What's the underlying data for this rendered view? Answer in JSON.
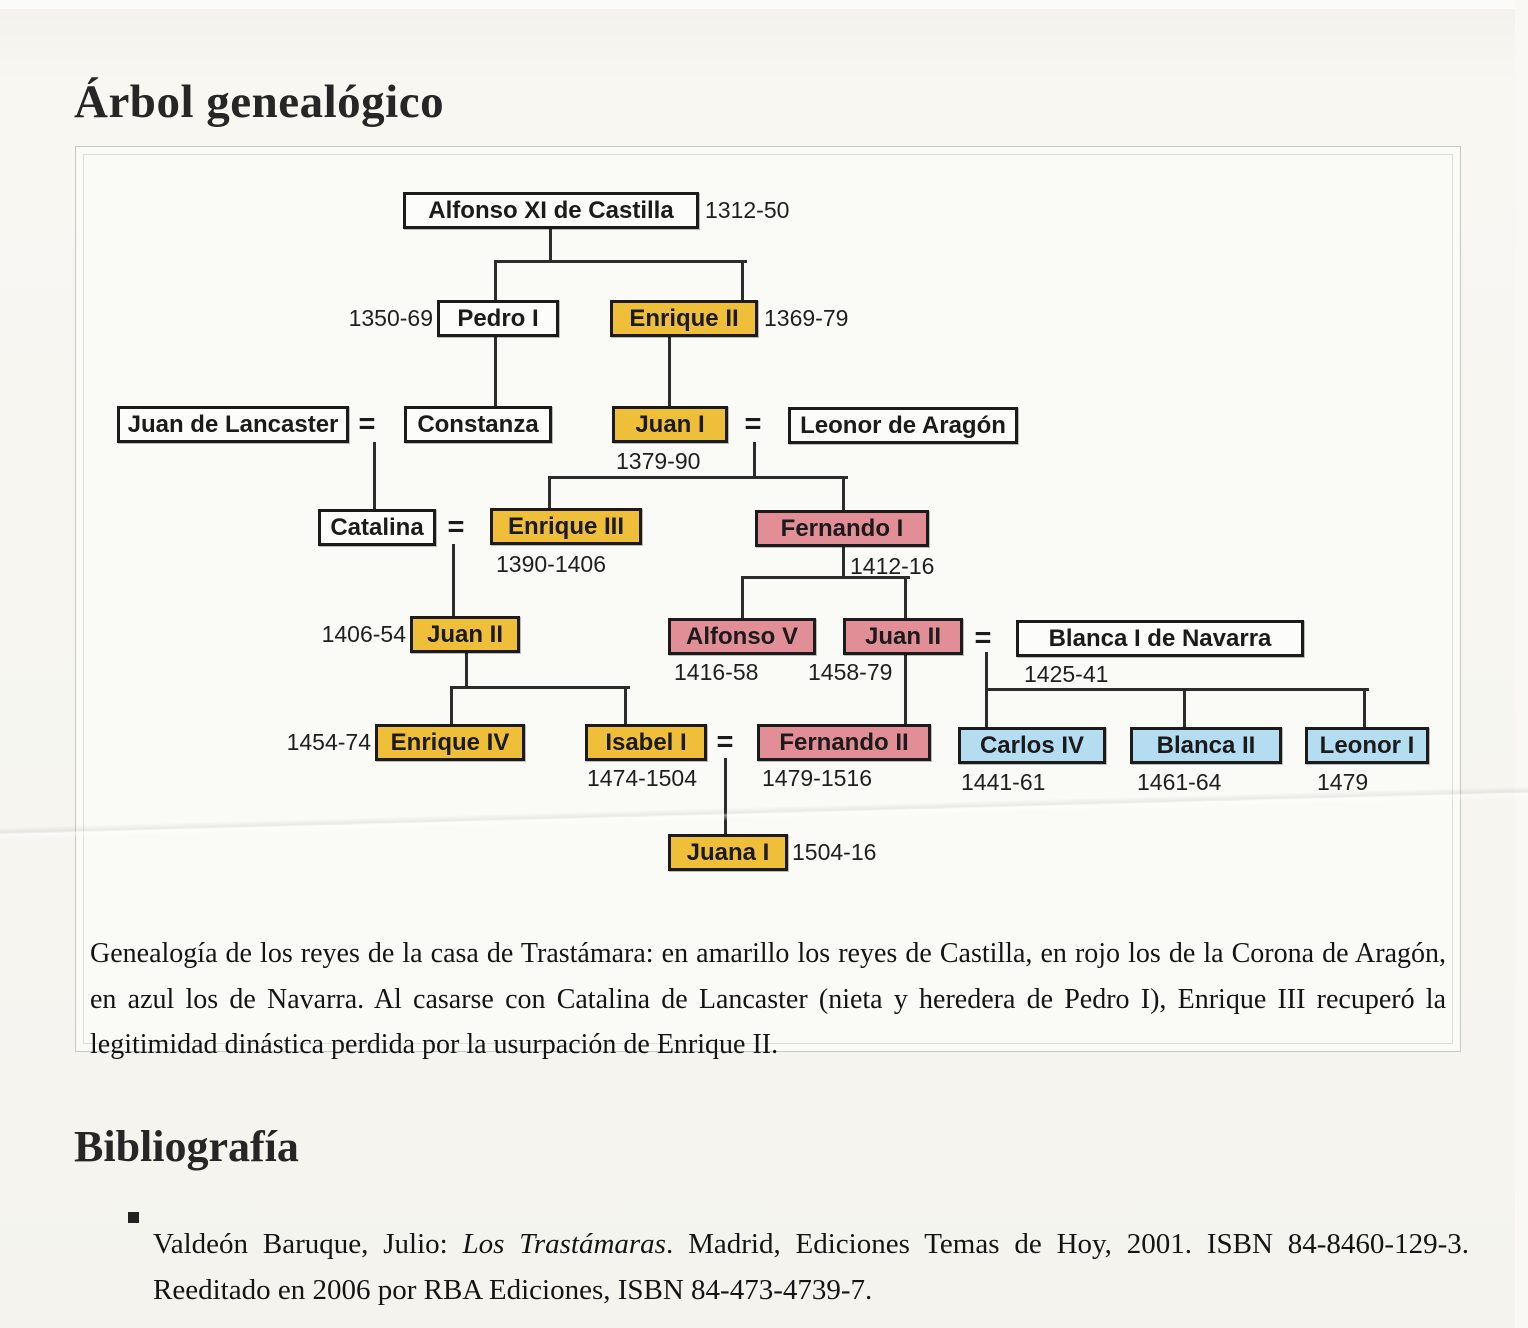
{
  "page": {
    "title": "Árbol genealógico",
    "bibliography_heading": "Bibliografía"
  },
  "figure": {
    "caption": "Genealogía de los reyes de la casa de Trastámara: en amarillo los reyes de Castilla, en rojo los de la Corona de Aragón, en azul los de Navarra. Al casarse con Catalina de Lancaster (nieta y heredera de Pedro I), Enrique III recuperó la legitimidad dinástica perdida por la usurpación de Enrique II."
  },
  "houses": {
    "castilla": "#EFBF3A",
    "aragon": "#E18E96",
    "navarra": "#B5DDF1",
    "none": "#FCFCFA"
  },
  "tree": {
    "equals_symbol": "=",
    "persons": [
      {
        "id": "alfonso_xi",
        "name": "Alfonso XI de Castilla",
        "dates": "1312-50",
        "house": "none"
      },
      {
        "id": "pedro_i",
        "name": "Pedro I",
        "dates": "1350-69",
        "house": "none"
      },
      {
        "id": "enrique_ii",
        "name": "Enrique II",
        "dates": "1369-79",
        "house": "castilla"
      },
      {
        "id": "juan_lancaster",
        "name": "Juan de Lancaster",
        "dates": "",
        "house": "none"
      },
      {
        "id": "constanza",
        "name": "Constanza",
        "dates": "",
        "house": "none"
      },
      {
        "id": "juan_i",
        "name": "Juan I",
        "dates": "1379-90",
        "house": "castilla"
      },
      {
        "id": "leonor_aragon",
        "name": "Leonor de Aragón",
        "dates": "",
        "house": "none"
      },
      {
        "id": "catalina",
        "name": "Catalina",
        "dates": "",
        "house": "none"
      },
      {
        "id": "enrique_iii",
        "name": "Enrique III",
        "dates": "1390-1406",
        "house": "castilla"
      },
      {
        "id": "fernando_i",
        "name": "Fernando I",
        "dates": "1412-16",
        "house": "aragon"
      },
      {
        "id": "juan_ii_castilla",
        "name": "Juan II",
        "dates": "1406-54",
        "house": "castilla"
      },
      {
        "id": "alfonso_v",
        "name": "Alfonso V",
        "dates": "1416-58",
        "house": "aragon"
      },
      {
        "id": "juan_ii_aragon",
        "name": "Juan II",
        "dates": "1458-79",
        "house": "aragon"
      },
      {
        "id": "blanca_i_navarra",
        "name": "Blanca I de Navarra",
        "dates": "1425-41",
        "house": "none"
      },
      {
        "id": "enrique_iv",
        "name": "Enrique IV",
        "dates": "1454-74",
        "house": "castilla"
      },
      {
        "id": "isabel_i",
        "name": "Isabel I",
        "dates": "1474-1504",
        "house": "castilla"
      },
      {
        "id": "fernando_ii",
        "name": "Fernando II",
        "dates": "1479-1516",
        "house": "aragon"
      },
      {
        "id": "carlos_iv",
        "name": "Carlos IV",
        "dates": "1441-61",
        "house": "navarra"
      },
      {
        "id": "blanca_ii",
        "name": "Blanca II",
        "dates": "1461-64",
        "house": "navarra"
      },
      {
        "id": "leonor_i",
        "name": "Leonor I",
        "dates": "1479",
        "house": "navarra"
      },
      {
        "id": "juana_i",
        "name": "Juana I",
        "dates": "1504-16",
        "house": "castilla"
      }
    ]
  },
  "bibliography": {
    "entry_author": "Valdeón  Baruque,  Julio: ",
    "entry_title": "Los Trastámaras",
    "entry_rest": ". Madrid, Ediciones Temas de Hoy, 2001. ISBN 84-8460-129-3. Reeditado en 2006 por RBA Ediciones, ISBN 84-473-4739-7."
  }
}
